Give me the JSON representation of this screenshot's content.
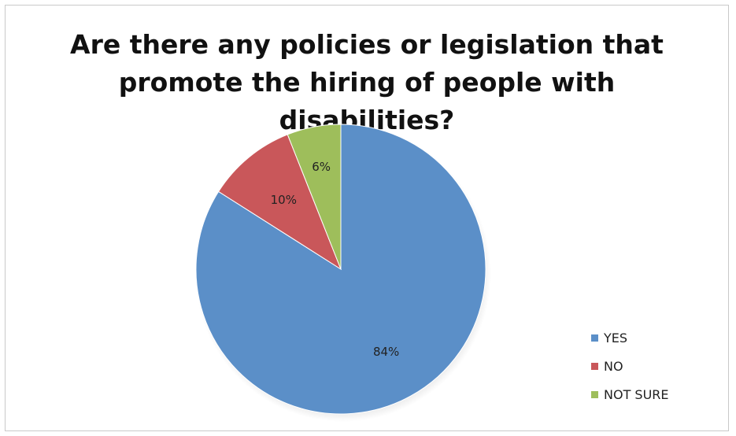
{
  "chart_data": {
    "type": "pie",
    "title_lines": [
      "Are there any policies or legislation that",
      "promote the hiring of people with",
      "disabilities?"
    ],
    "categories": [
      "YES",
      "NO",
      "NOT SURE"
    ],
    "values": [
      84,
      10,
      6
    ],
    "labels": [
      "84%",
      "10%",
      "6%"
    ],
    "colors": [
      "#5b8fc8",
      "#c9575a",
      "#9ebe5b"
    ],
    "legend_position": "right-bottom"
  }
}
